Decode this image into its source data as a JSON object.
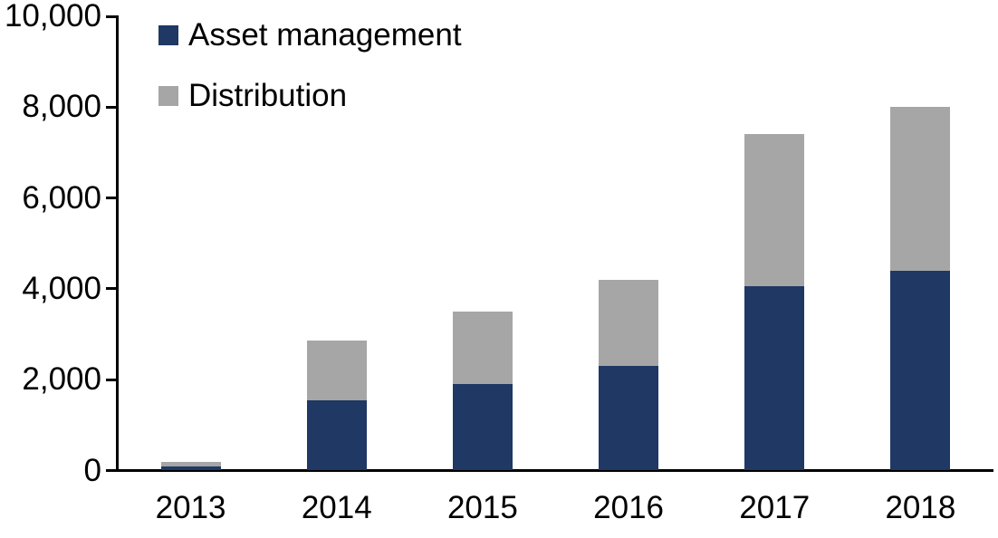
{
  "chart_data": {
    "type": "bar",
    "stacked": true,
    "title": "",
    "xlabel": "",
    "ylabel": "",
    "categories": [
      "2013",
      "2014",
      "2015",
      "2016",
      "2017",
      "2018"
    ],
    "series": [
      {
        "name": "Asset management",
        "color": "#1F3864",
        "values": [
          80,
          1550,
          1900,
          2300,
          4050,
          4400
        ]
      },
      {
        "name": "Distribution",
        "color": "#A6A6A6",
        "values": [
          100,
          1320,
          1600,
          1900,
          3350,
          3600
        ]
      }
    ],
    "totals": [
      180,
      2870,
      3500,
      4200,
      7400,
      8000
    ],
    "ylim": [
      0,
      10000
    ],
    "ytick_interval": 2000,
    "ytick_labels": [
      "0",
      "2,000",
      "4,000",
      "6,000",
      "8,000",
      "10,000"
    ],
    "grid": false,
    "legend_position": "top-left",
    "axis_color": "#000000",
    "text_color": "#000000",
    "background_color": "#FFFFFF"
  }
}
